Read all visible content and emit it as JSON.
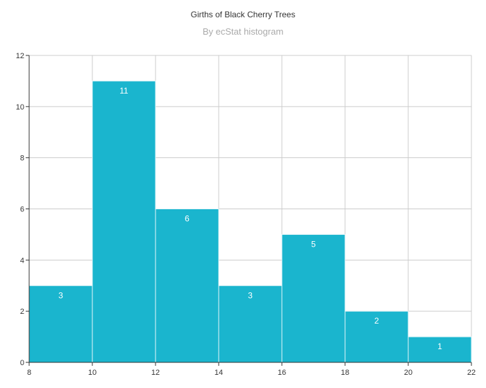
{
  "chart_data": {
    "type": "bar",
    "title": "Girths of Black Cherry Trees",
    "subtitle": "By ecStat histogram",
    "xlabel": "",
    "ylabel": "",
    "bins": [
      {
        "x0": 8,
        "x1": 10,
        "value": 3
      },
      {
        "x0": 10,
        "x1": 12,
        "value": 11
      },
      {
        "x0": 12,
        "x1": 14,
        "value": 6
      },
      {
        "x0": 14,
        "x1": 16,
        "value": 3
      },
      {
        "x0": 16,
        "x1": 18,
        "value": 5
      },
      {
        "x0": 18,
        "x1": 20,
        "value": 2
      },
      {
        "x0": 20,
        "x1": 22,
        "value": 1
      }
    ],
    "xlim": [
      8,
      22
    ],
    "ylim": [
      0,
      12
    ],
    "x_ticks": [
      8,
      10,
      12,
      14,
      16,
      18,
      20,
      22
    ],
    "y_ticks": [
      0,
      2,
      4,
      6,
      8,
      10,
      12
    ],
    "grid": true,
    "colors": {
      "bar": "#1ab5ce",
      "bar_border": "#e6f6f9",
      "grid": "#cccccc",
      "axis": "#333333"
    }
  }
}
